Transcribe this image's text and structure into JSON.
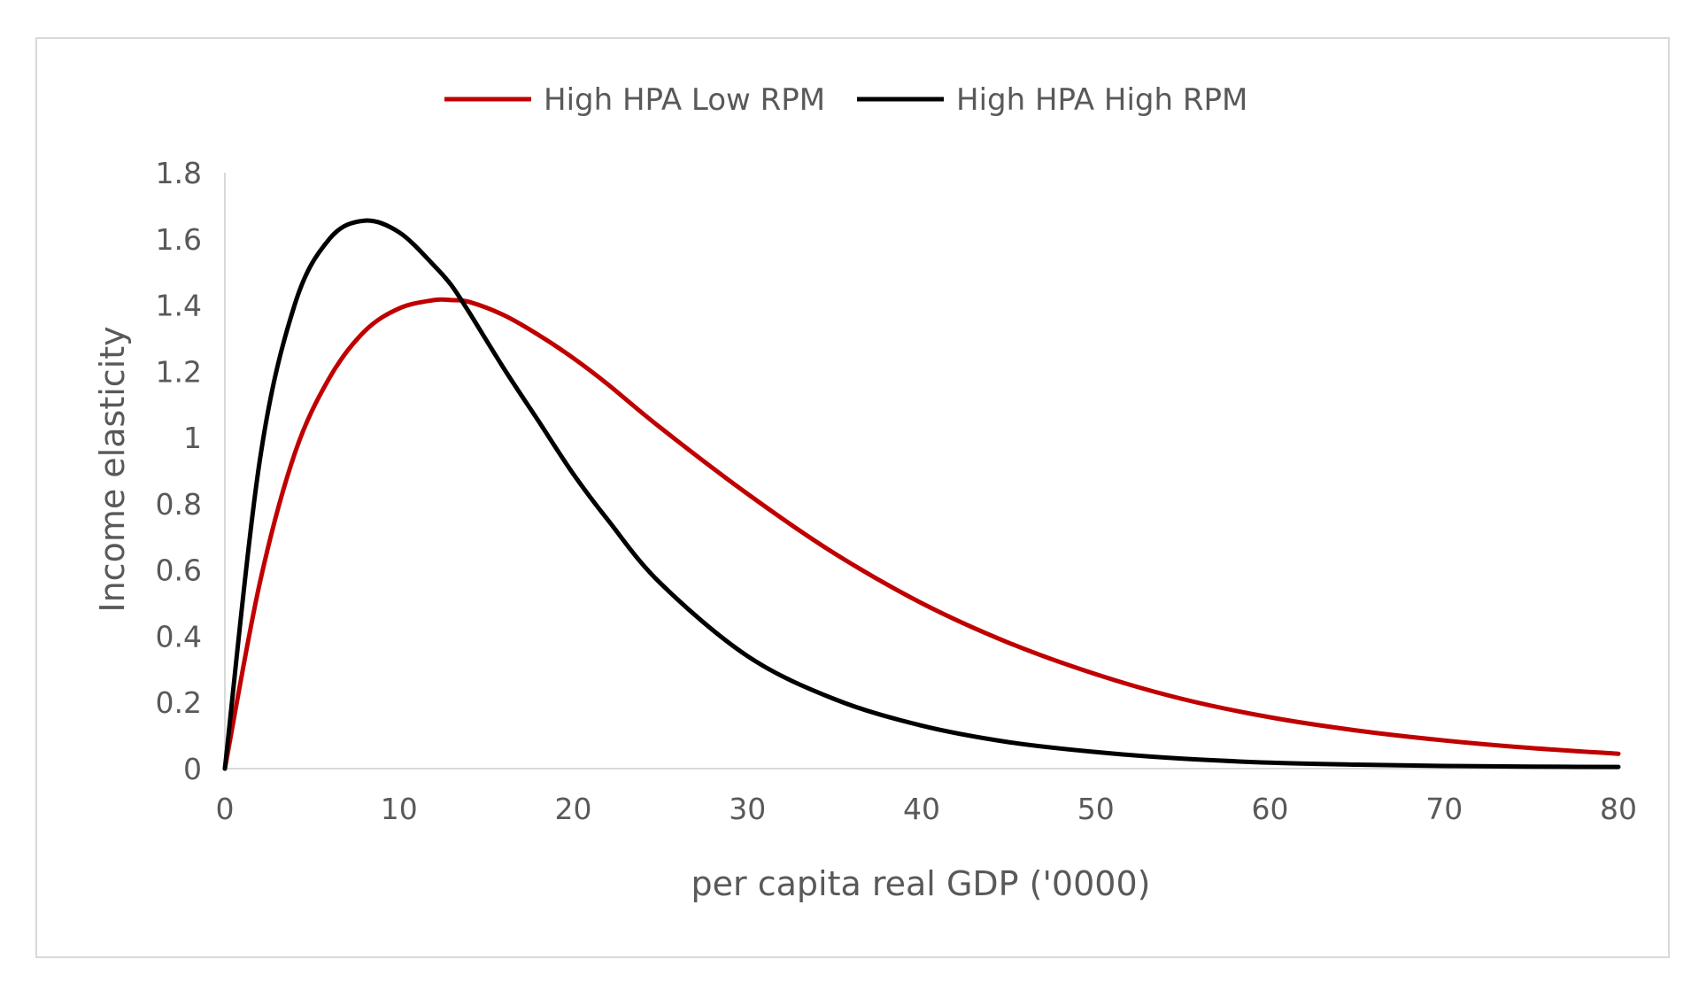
{
  "chart_data": {
    "type": "line",
    "title": "",
    "xlabel": "per capita real GDP ('0000)",
    "ylabel": "Income elasticity",
    "xlim": [
      0,
      80
    ],
    "ylim": [
      0,
      1.8
    ],
    "x_ticks": [
      0,
      10,
      20,
      30,
      40,
      50,
      60,
      70,
      80
    ],
    "y_ticks": [
      0,
      0.2,
      0.4,
      0.6,
      0.8,
      1,
      1.2,
      1.4,
      1.6,
      1.8
    ],
    "x_tick_labels": [
      "0",
      "10",
      "20",
      "30",
      "40",
      "50",
      "60",
      "70",
      "80"
    ],
    "y_tick_labels": [
      "0",
      "0.2",
      "0.4",
      "0.6",
      "0.8",
      "1",
      "1.2",
      "1.4",
      "1.6",
      "1.8"
    ],
    "grid": false,
    "legend_position": "top-center",
    "x": [
      0,
      2,
      4,
      6,
      8,
      10,
      12,
      13,
      14,
      16,
      18,
      20,
      22,
      25,
      30,
      35,
      40,
      45,
      50,
      55,
      60,
      65,
      70,
      75,
      80
    ],
    "series": [
      {
        "name": "High HPA Low RPM",
        "color": "#c00000",
        "values": [
          0,
          0.56,
          0.95,
          1.18,
          1.32,
          1.39,
          1.415,
          1.415,
          1.41,
          1.37,
          1.31,
          1.24,
          1.16,
          1.03,
          0.83,
          0.65,
          0.5,
          0.38,
          0.285,
          0.21,
          0.155,
          0.115,
          0.085,
          0.062,
          0.045
        ]
      },
      {
        "name": "High HPA High RPM",
        "color": "#000000",
        "values": [
          0,
          0.93,
          1.4,
          1.6,
          1.655,
          1.62,
          1.52,
          1.46,
          1.38,
          1.21,
          1.05,
          0.89,
          0.75,
          0.56,
          0.34,
          0.21,
          0.13,
          0.08,
          0.05,
          0.03,
          0.018,
          0.012,
          0.008,
          0.006,
          0.005
        ]
      }
    ]
  }
}
